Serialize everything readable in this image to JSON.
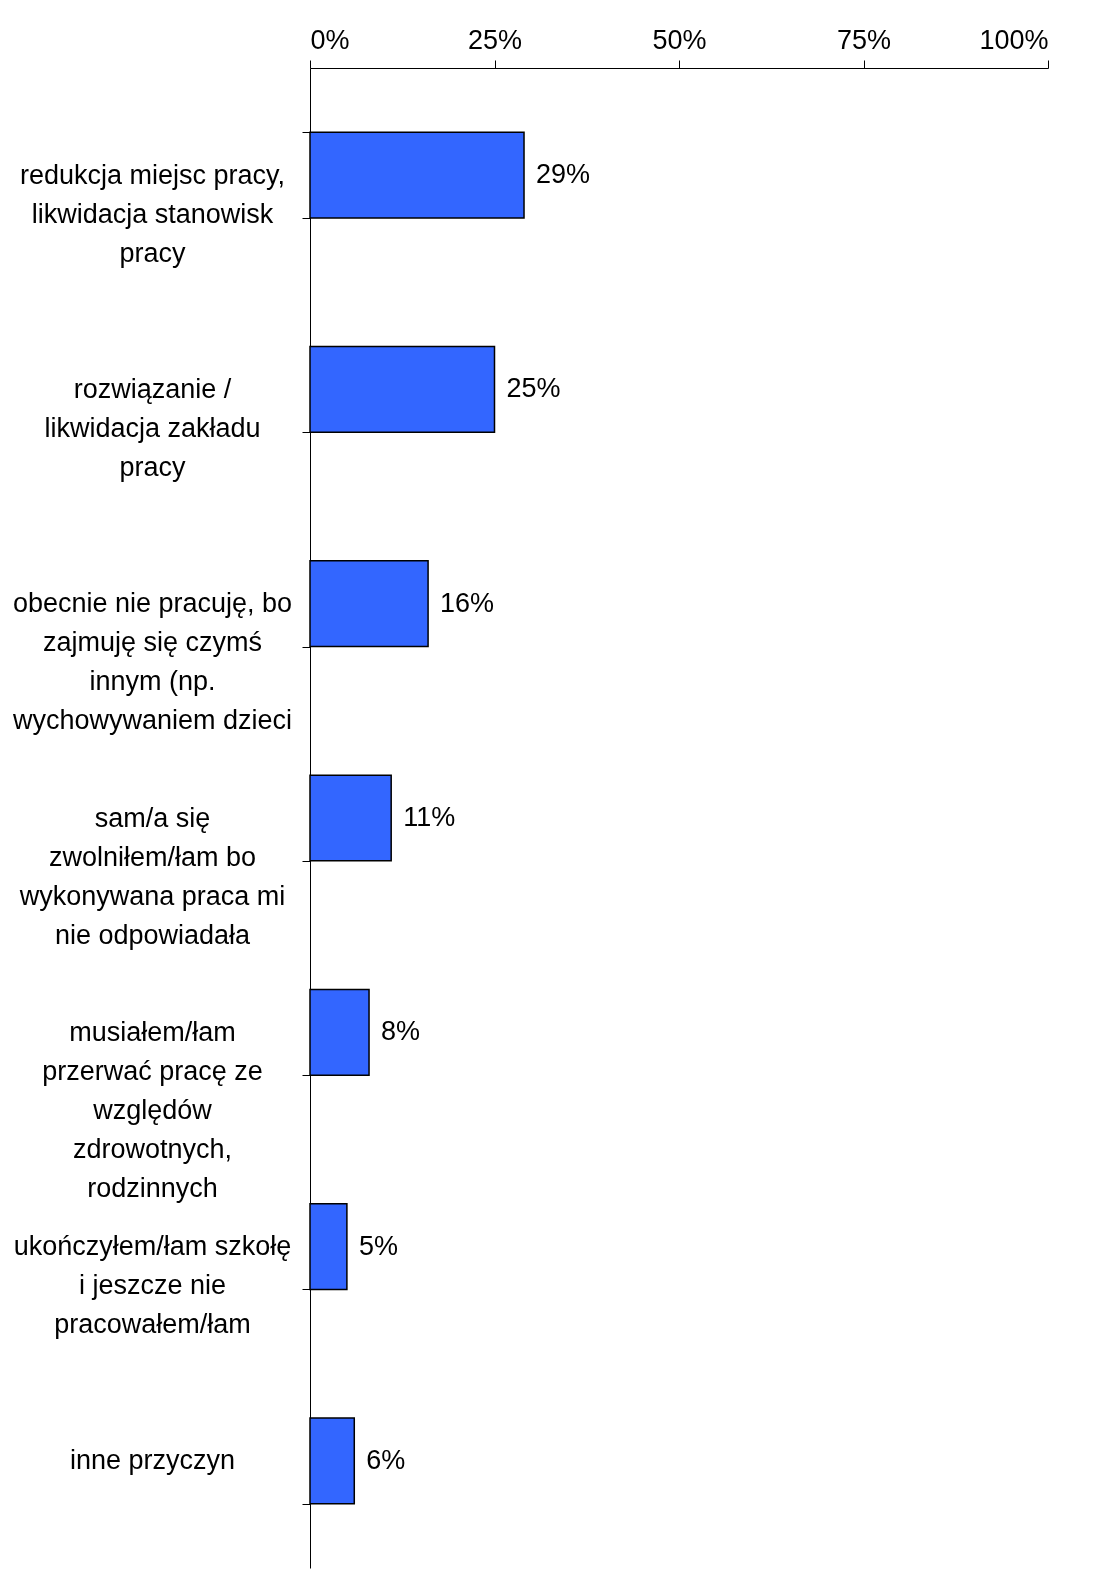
{
  "chart_data": {
    "type": "bar",
    "orientation": "horizontal",
    "categories": [
      "redukcja miejsc pracy, likwidacja stanowisk pracy",
      "rozwiązanie / likwidacja zakładu pracy",
      "obecnie nie pracuję, bo zajmuję się czymś innym (np. wychowywaniem dzieci",
      "sam/a się zwolniłem/łam bo wykonywana praca mi nie odpowiadała",
      "musiałem/łam przerwać pracę ze względów zdrowotnych, rodzinnych",
      "ukończyłem/łam szkołę i jeszcze nie pracowałem/łam",
      "inne przyczyn"
    ],
    "values": [
      29,
      25,
      16,
      11,
      8,
      5,
      6
    ],
    "value_labels": [
      "29%",
      "25%",
      "16%",
      "11%",
      "8%",
      "5%",
      "6%"
    ],
    "color": "#3366ff",
    "xlim": [
      0,
      100
    ],
    "xticks": [
      {
        "value": 0,
        "label": "0%"
      },
      {
        "value": 25,
        "label": "25%"
      },
      {
        "value": 50,
        "label": "50%"
      },
      {
        "value": 75,
        "label": "75%"
      },
      {
        "value": 100,
        "label": "100%"
      }
    ]
  }
}
